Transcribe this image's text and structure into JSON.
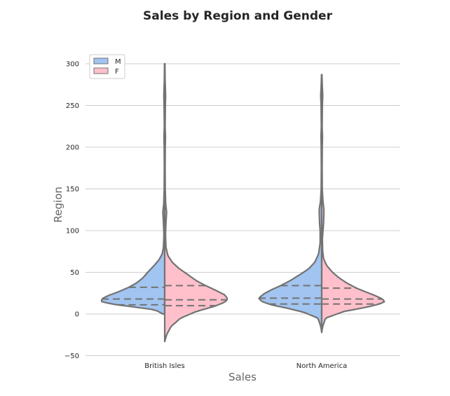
{
  "chart_data": {
    "type": "violin",
    "title": "Sales by Region and Gender",
    "xlabel": "Sales",
    "ylabel": "Region",
    "categories": [
      "British Isles",
      "North America"
    ],
    "ylim": [
      -50,
      305
    ],
    "yticks": [
      -50,
      0,
      50,
      100,
      150,
      200,
      250,
      300
    ],
    "grid": true,
    "legend_position": "top-left",
    "split": true,
    "series": [
      {
        "name": "M",
        "color": "#a1c4f0",
        "violins": [
          {
            "category": "British Isles",
            "min": 0,
            "max": 300,
            "quartiles": [
              11,
              18,
              32
            ],
            "profile": [
              [
                0,
                0.03
              ],
              [
                5,
                0.15
              ],
              [
                9,
                0.55
              ],
              [
                12,
                0.85
              ],
              [
                15,
                1.0
              ],
              [
                18,
                1.0
              ],
              [
                22,
                0.9
              ],
              [
                27,
                0.72
              ],
              [
                32,
                0.57
              ],
              [
                37,
                0.45
              ],
              [
                43,
                0.35
              ],
              [
                50,
                0.27
              ],
              [
                58,
                0.17
              ],
              [
                65,
                0.09
              ],
              [
                72,
                0.04
              ],
              [
                80,
                0.02
              ],
              [
                95,
                0.012
              ],
              [
                110,
                0.02
              ],
              [
                122,
                0.03
              ],
              [
                132,
                0.015
              ],
              [
                150,
                0.008
              ],
              [
                175,
                0.006
              ],
              [
                200,
                0.008
              ],
              [
                212,
                0.012
              ],
              [
                225,
                0.006
              ],
              [
                250,
                0.01
              ],
              [
                262,
                0.014
              ],
              [
                280,
                0.006
              ],
              [
                300,
                0.003
              ]
            ]
          },
          {
            "category": "North America",
            "min": -22,
            "max": 287,
            "quartiles": [
              12,
              19,
              34
            ],
            "profile": [
              [
                -22,
                0.0
              ],
              [
                -15,
                0.015
              ],
              [
                -5,
                0.06
              ],
              [
                2,
                0.28
              ],
              [
                7,
                0.55
              ],
              [
                11,
                0.8
              ],
              [
                15,
                0.95
              ],
              [
                19,
                1.0
              ],
              [
                24,
                0.92
              ],
              [
                29,
                0.8
              ],
              [
                34,
                0.65
              ],
              [
                40,
                0.5
              ],
              [
                47,
                0.35
              ],
              [
                54,
                0.21
              ],
              [
                62,
                0.11
              ],
              [
                72,
                0.05
              ],
              [
                85,
                0.025
              ],
              [
                100,
                0.025
              ],
              [
                110,
                0.035
              ],
              [
                125,
                0.04
              ],
              [
                135,
                0.02
              ],
              [
                150,
                0.008
              ],
              [
                175,
                0.006
              ],
              [
                200,
                0.008
              ],
              [
                212,
                0.012
              ],
              [
                225,
                0.006
              ],
              [
                250,
                0.01
              ],
              [
                262,
                0.016
              ],
              [
                275,
                0.008
              ],
              [
                287,
                0.003
              ]
            ]
          }
        ]
      },
      {
        "name": "F",
        "color": "#ffc0cb",
        "violins": [
          {
            "category": "British Isles",
            "min": -33,
            "max": 300,
            "quartiles": [
              10,
              17,
              34
            ],
            "profile": [
              [
                -33,
                0.0
              ],
              [
                -25,
                0.03
              ],
              [
                -15,
                0.1
              ],
              [
                -5,
                0.25
              ],
              [
                3,
                0.5
              ],
              [
                9,
                0.78
              ],
              [
                14,
                0.95
              ],
              [
                18,
                1.0
              ],
              [
                23,
                0.95
              ],
              [
                28,
                0.82
              ],
              [
                34,
                0.65
              ],
              [
                40,
                0.5
              ],
              [
                47,
                0.37
              ],
              [
                55,
                0.22
              ],
              [
                62,
                0.12
              ],
              [
                70,
                0.05
              ],
              [
                80,
                0.02
              ],
              [
                95,
                0.012
              ],
              [
                110,
                0.02
              ],
              [
                122,
                0.03
              ],
              [
                132,
                0.015
              ],
              [
                150,
                0.008
              ],
              [
                175,
                0.006
              ],
              [
                200,
                0.008
              ],
              [
                212,
                0.012
              ],
              [
                225,
                0.006
              ],
              [
                250,
                0.01
              ],
              [
                262,
                0.014
              ],
              [
                280,
                0.006
              ],
              [
                300,
                0.003
              ]
            ]
          },
          {
            "category": "North America",
            "min": -22,
            "max": 287,
            "quartiles": [
              12,
              18,
              31
            ],
            "profile": [
              [
                -22,
                0.0
              ],
              [
                -15,
                0.015
              ],
              [
                -5,
                0.06
              ],
              [
                3,
                0.35
              ],
              [
                8,
                0.7
              ],
              [
                12,
                0.92
              ],
              [
                15,
                1.0
              ],
              [
                18,
                0.96
              ],
              [
                22,
                0.85
              ],
              [
                27,
                0.68
              ],
              [
                31,
                0.55
              ],
              [
                37,
                0.4
              ],
              [
                43,
                0.28
              ],
              [
                50,
                0.17
              ],
              [
                58,
                0.08
              ],
              [
                66,
                0.03
              ],
              [
                75,
                0.015
              ],
              [
                90,
                0.01
              ],
              [
                100,
                0.02
              ],
              [
                110,
                0.03
              ],
              [
                125,
                0.035
              ],
              [
                135,
                0.02
              ],
              [
                150,
                0.008
              ],
              [
                175,
                0.006
              ],
              [
                200,
                0.008
              ],
              [
                212,
                0.012
              ],
              [
                225,
                0.006
              ],
              [
                250,
                0.01
              ],
              [
                262,
                0.016
              ],
              [
                275,
                0.008
              ],
              [
                287,
                0.003
              ]
            ]
          }
        ]
      }
    ]
  }
}
